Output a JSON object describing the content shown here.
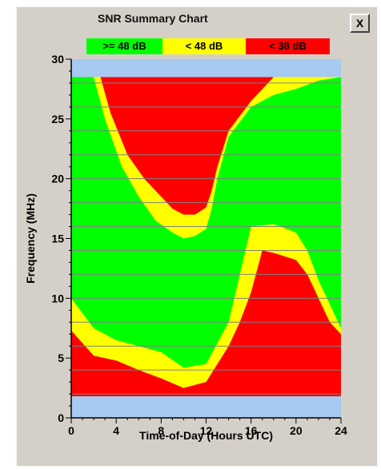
{
  "window": {
    "title": "SNR Summary Chart",
    "close_label": "X"
  },
  "legend": [
    {
      "label": ">= 48 dB",
      "color": "#00ff00"
    },
    {
      "label": "< 48 dB",
      "color": "#ffff00"
    },
    {
      "label": "< 38 dB",
      "color": "#ff0000"
    }
  ],
  "colors": {
    "no_data": "#a6caf0",
    "gridline": "#808080"
  },
  "chart_data": {
    "type": "heatmap",
    "title": "SNR Summary Chart",
    "xlabel": "Time-of-Day (Hours UTC)",
    "ylabel": "Frequency (MHz)",
    "xlim": [
      0,
      24
    ],
    "ylim": [
      0,
      30
    ],
    "x_ticks": [
      0,
      4,
      8,
      12,
      16,
      20,
      24
    ],
    "y_ticks": [
      0,
      5,
      10,
      15,
      20,
      25,
      30
    ],
    "grid": "horizontal lines every 2 MHz",
    "data_range_mhz": [
      1.8,
      28.5
    ],
    "categories": [
      ">= 48 dB",
      "< 48 dB",
      "< 38 dB"
    ],
    "regions": {
      "upper_red_zone_boundary": {
        "hours": [
          2.6,
          3.5,
          5,
          6.5,
          8,
          9,
          10,
          11,
          12,
          12.5,
          13,
          14,
          16,
          18,
          20,
          22,
          23.2
        ],
        "lower_mhz": [
          28.5,
          25.5,
          22,
          20,
          18.5,
          17.5,
          17.0,
          17.0,
          17.6,
          19,
          21,
          24,
          26.5,
          28.5,
          null,
          null,
          null
        ]
      },
      "upper_yellow_band_boundary": {
        "hours": [
          2,
          3,
          4.5,
          6,
          7.5,
          9,
          10,
          11,
          12,
          12.5,
          13,
          14,
          16,
          18,
          20,
          22,
          24
        ],
        "lower_mhz": [
          28.5,
          25,
          21,
          18.5,
          16.5,
          15.5,
          15.0,
          15.2,
          15.8,
          17.5,
          20,
          23.5,
          26,
          27,
          27.5,
          28.2,
          28.5
        ]
      },
      "lower_yellow_band_boundary": {
        "hours": [
          0,
          2,
          4,
          6,
          8,
          10,
          12,
          14,
          16,
          18,
          20,
          21,
          22,
          23,
          24
        ],
        "upper_mhz": [
          10,
          7.5,
          6.5,
          6,
          5.5,
          4.2,
          4.5,
          8,
          16,
          16.2,
          15.5,
          14,
          11.5,
          9.5,
          7.5
        ]
      },
      "lower_red_zone_boundary": {
        "hours": [
          0,
          2,
          4,
          6,
          8,
          10,
          12,
          14,
          15,
          16,
          17,
          18,
          20,
          21,
          22,
          23,
          24
        ],
        "upper_mhz": [
          7.3,
          5.2,
          4.8,
          4.0,
          3.3,
          2.5,
          3.0,
          6.0,
          8.0,
          10.5,
          14,
          13.8,
          13.2,
          12.0,
          10.0,
          8.0,
          7.0
        ]
      }
    }
  }
}
